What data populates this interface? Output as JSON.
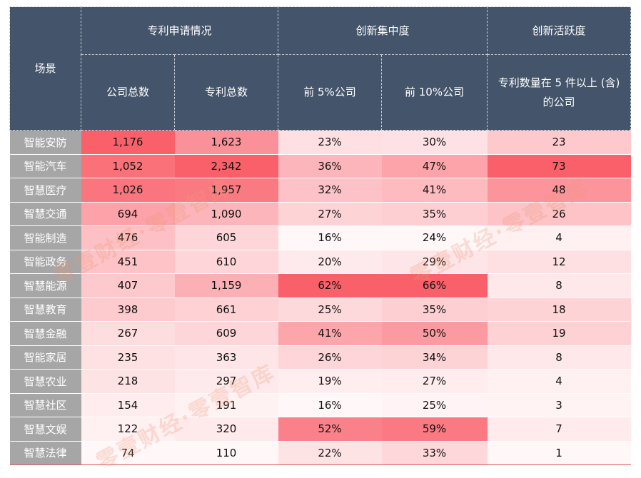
{
  "header": {
    "scene": "场景",
    "groups": [
      "专利申请情况",
      "创新集中度",
      "创新活跃度"
    ],
    "columns": [
      "公司总数",
      "专利总数",
      "前 5%公司",
      "前 10%公司",
      "专利数量在 5 件以上 (含) 的公司"
    ]
  },
  "rows": [
    {
      "scene": "智能安防",
      "values": [
        "1,176",
        "1,623",
        "23%",
        "30%",
        "23"
      ]
    },
    {
      "scene": "智能汽车",
      "values": [
        "1,052",
        "2,342",
        "36%",
        "47%",
        "73"
      ]
    },
    {
      "scene": "智慧医疗",
      "values": [
        "1,026",
        "1,957",
        "32%",
        "41%",
        "48"
      ]
    },
    {
      "scene": "智慧交通",
      "values": [
        "694",
        "1,090",
        "27%",
        "35%",
        "26"
      ]
    },
    {
      "scene": "智能制造",
      "values": [
        "476",
        "605",
        "16%",
        "24%",
        "4"
      ]
    },
    {
      "scene": "智能政务",
      "values": [
        "451",
        "610",
        "20%",
        "29%",
        "12"
      ]
    },
    {
      "scene": "智慧能源",
      "values": [
        "407",
        "1,159",
        "62%",
        "66%",
        "8"
      ]
    },
    {
      "scene": "智慧教育",
      "values": [
        "398",
        "661",
        "25%",
        "35%",
        "18"
      ]
    },
    {
      "scene": "智慧金融",
      "values": [
        "267",
        "609",
        "41%",
        "50%",
        "19"
      ]
    },
    {
      "scene": "智能家居",
      "values": [
        "235",
        "363",
        "26%",
        "34%",
        "8"
      ]
    },
    {
      "scene": "智慧农业",
      "values": [
        "218",
        "297",
        "19%",
        "27%",
        "4"
      ]
    },
    {
      "scene": "智慧社区",
      "values": [
        "154",
        "191",
        "16%",
        "25%",
        "3"
      ]
    },
    {
      "scene": "智慧文娱",
      "values": [
        "122",
        "320",
        "52%",
        "59%",
        "7"
      ]
    },
    {
      "scene": "智慧法律",
      "values": [
        "74",
        "110",
        "22%",
        "33%",
        "1"
      ]
    }
  ],
  "watermark": [
    "零壹财经·零壹智库",
    "零壹财经·零壹智库",
    "零壹财经·零壹智库"
  ],
  "colors": {
    "header": "#44546a",
    "label": "#a6a6a6",
    "heat_low": "#fff7f8",
    "heat_high": "#f9606a"
  }
}
